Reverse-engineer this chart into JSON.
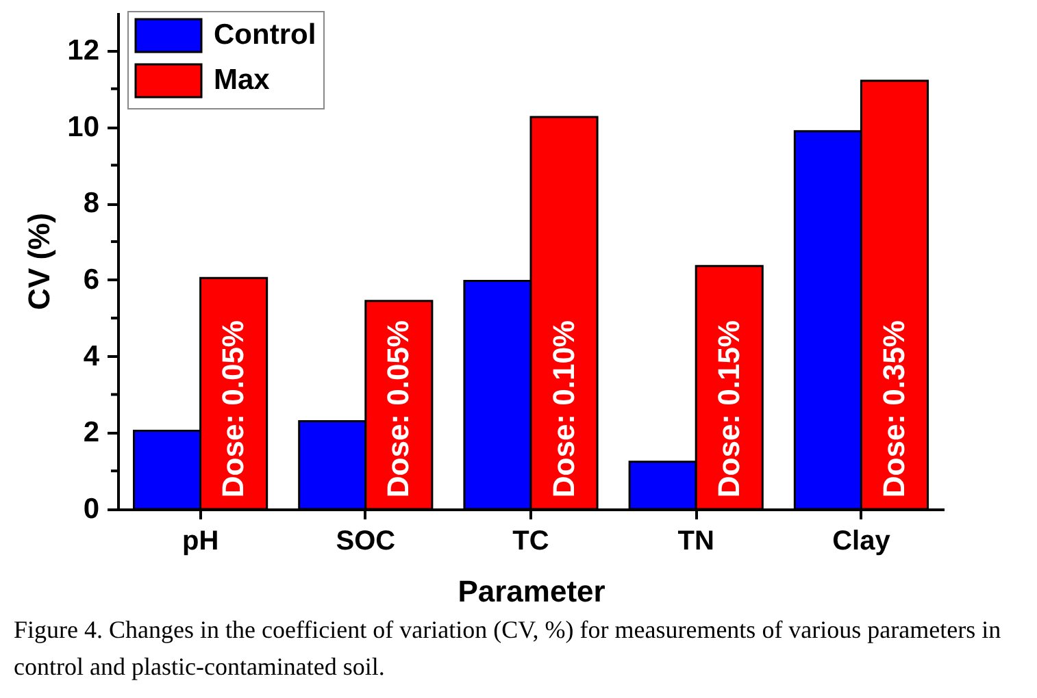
{
  "chart_data": {
    "type": "bar",
    "xlabel": "Parameter",
    "ylabel": "CV (%)",
    "categories": [
      "pH",
      "SOC",
      "TC",
      "TN",
      "Clay"
    ],
    "series": [
      {
        "name": "Control",
        "color": "#0000ff",
        "values": [
          2.05,
          2.3,
          5.97,
          1.24,
          9.89
        ]
      },
      {
        "name": "Max",
        "color": "#ff0000",
        "values": [
          6.05,
          5.45,
          10.26,
          6.36,
          11.21
        ]
      }
    ],
    "ylim": [
      0,
      13
    ],
    "yticks": [
      0,
      {
        "value": 1,
        "label": null
      },
      2,
      {
        "value": 3,
        "label": null
      },
      4,
      {
        "value": 5,
        "label": null
      },
      6,
      {
        "value": 7,
        "label": null
      },
      8,
      {
        "value": 9,
        "label": null
      },
      10,
      {
        "value": 11,
        "label": null
      },
      12
    ],
    "grid": false,
    "legend": "top left",
    "annotations": [
      {
        "text": "Dose: 0.05%",
        "x": "pH",
        "y": 0.3
      },
      {
        "text": "Dose: 0.05%",
        "x": "SOC",
        "y": 0.3
      },
      {
        "text": "Dose: 0.10%",
        "x": "TC",
        "y": 0.3
      },
      {
        "text": "Dose: 0.15%",
        "x": "TN",
        "y": 0.3
      },
      {
        "text": "Dose: 0.35%",
        "x": "Clay",
        "y": 0.3
      },
      "Figure 4. Changes in the coefficient of variation (CV, %) for measurements of various parameters in control and plastic-contaminated soil."
    ]
  }
}
